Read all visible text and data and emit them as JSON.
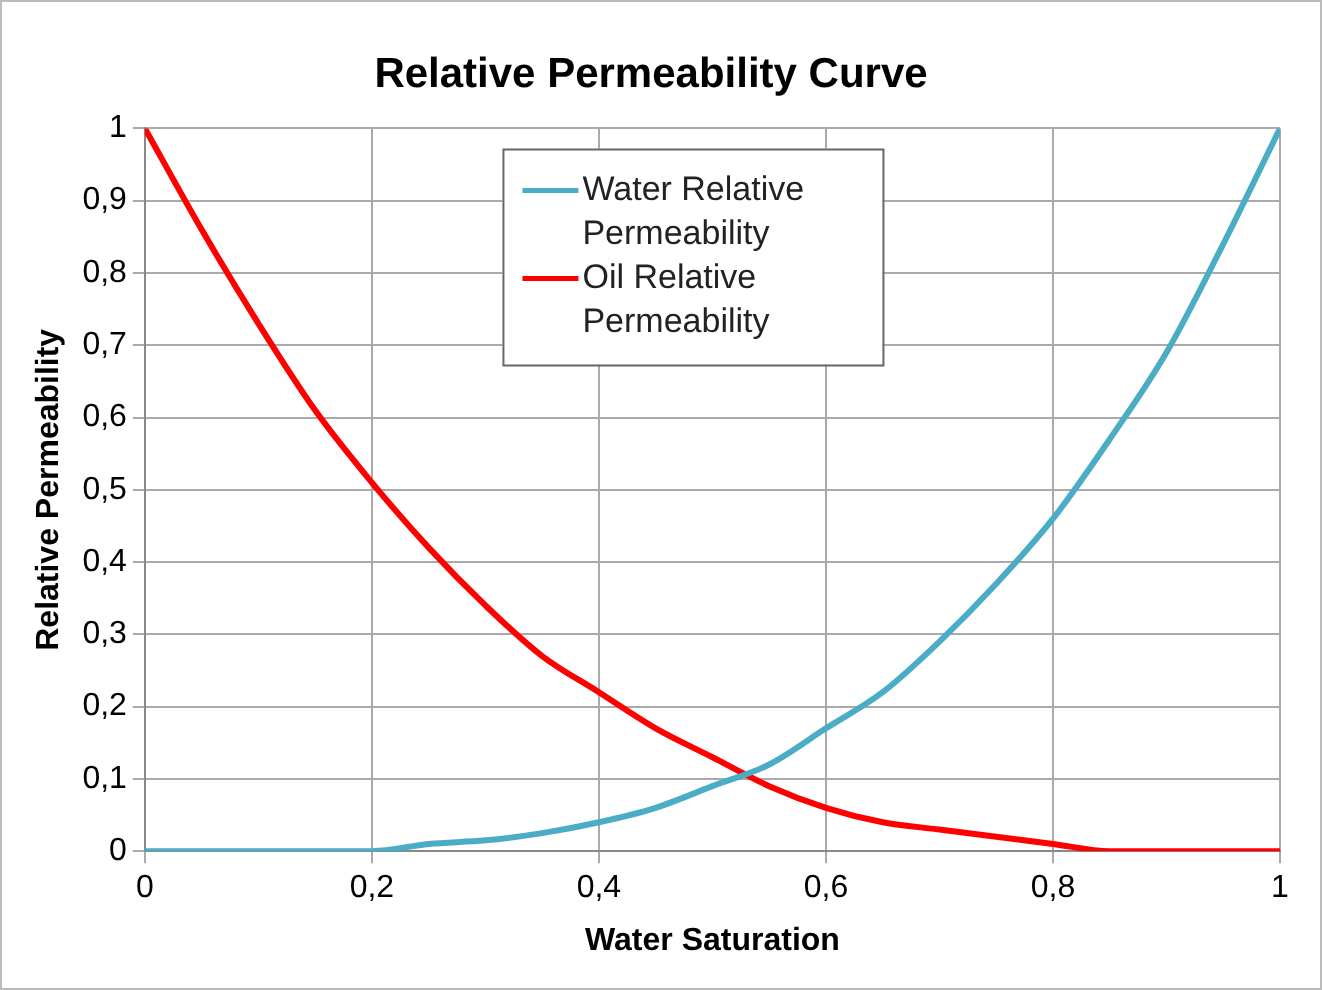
{
  "chart_data": {
    "type": "line",
    "title": "Relative Permeability Curve",
    "xlabel": "Water Saturation",
    "ylabel": "Relative Permeability",
    "x": [
      0,
      0.05,
      0.1,
      0.15,
      0.2,
      0.25,
      0.3,
      0.35,
      0.4,
      0.45,
      0.5,
      0.55,
      0.6,
      0.65,
      0.7,
      0.75,
      0.8,
      0.85,
      0.9,
      0.95,
      1
    ],
    "series": [
      {
        "name": "Water Relative Permeability",
        "color": "#4bacc6",
        "values": [
          0,
          0,
          0,
          0,
          0,
          0.01,
          0.015,
          0.025,
          0.04,
          0.06,
          0.09,
          0.12,
          0.17,
          0.22,
          0.29,
          0.37,
          0.46,
          0.57,
          0.69,
          0.84,
          1
        ]
      },
      {
        "name": "Oil Relative Permeability",
        "color": "#ff0000",
        "values": [
          1,
          0.86,
          0.73,
          0.61,
          0.51,
          0.42,
          0.34,
          0.27,
          0.22,
          0.17,
          0.13,
          0.09,
          0.06,
          0.04,
          0.03,
          0.02,
          0.01,
          0,
          0,
          0,
          0
        ]
      }
    ],
    "xlim": [
      0,
      1
    ],
    "xticks": [
      0,
      {
        "value": 0.2,
        "label": "0,2"
      },
      {
        "value": 0.4,
        "label": "0,4"
      },
      {
        "value": 0.6,
        "label": "0,6"
      },
      {
        "value": 0.8,
        "label": "0,8"
      },
      1
    ],
    "ylim": [
      0,
      1
    ],
    "yticks": [
      0,
      {
        "value": 0.1,
        "label": "0,1"
      },
      {
        "value": 0.2,
        "label": "0,2"
      },
      {
        "value": 0.3,
        "label": "0,3"
      },
      {
        "value": 0.4,
        "label": "0,4"
      },
      {
        "value": 0.5,
        "label": "0,5"
      },
      {
        "value": 0.6,
        "label": "0,6"
      },
      {
        "value": 0.7,
        "label": "0,7"
      },
      {
        "value": 0.8,
        "label": "0,8"
      },
      {
        "value": 0.9,
        "label": "0,9"
      },
      1
    ],
    "grid": true,
    "legend": "top",
    "marker": "none",
    "line_style": "solid"
  }
}
